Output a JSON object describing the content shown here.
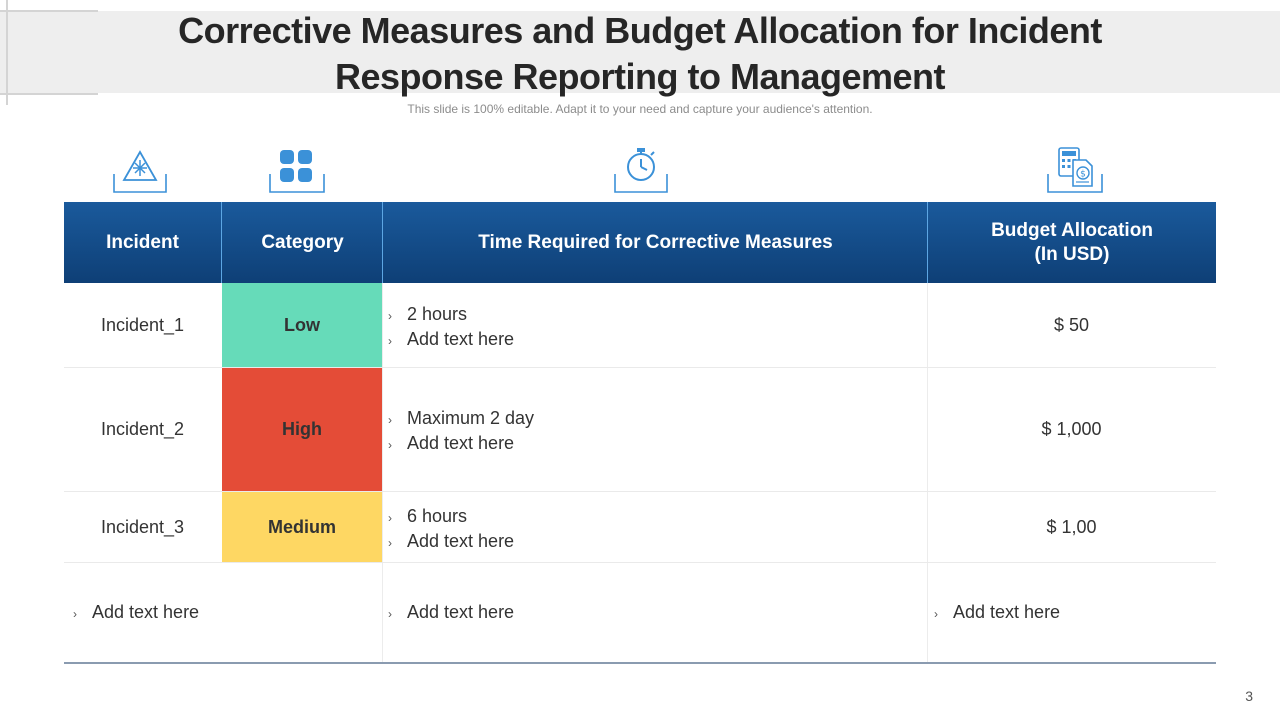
{
  "slide": {
    "title_line1": "Corrective Measures and Budget Allocation for Incident",
    "title_line2": "Response Reporting to Management",
    "subtitle": "This slide is 100% editable. Adapt it to your need and capture your audience's attention.",
    "page_number": "3"
  },
  "icons": [
    "warning-triangle-icon",
    "category-grid-icon",
    "stopwatch-icon",
    "calculator-budget-icon"
  ],
  "colors": {
    "header": "#0e3f76",
    "low": "#66dbb9",
    "high": "#e44c37",
    "medium": "#fed763",
    "icon": "#3b91d8"
  },
  "table": {
    "headers": {
      "incident": "Incident",
      "category": "Category",
      "time": "Time Required for Corrective Measures",
      "budget_line1": "Budget Allocation",
      "budget_line2": "(In USD)"
    },
    "rows": [
      {
        "incident": "Incident_1",
        "category": "Low",
        "time_1": "2 hours",
        "time_2": "Add text here",
        "budget": "$ 50"
      },
      {
        "incident": "Incident_2",
        "category": "High",
        "time_1": "Maximum 2 day",
        "time_2": "Add text here",
        "budget": "$ 1,000"
      },
      {
        "incident": "Incident_3",
        "category": "Medium",
        "time_1": "6 hours",
        "time_2": "Add text here",
        "budget": "$ 1,00"
      }
    ],
    "footer": {
      "col1": "Add text here",
      "col2": "Add text here",
      "col3": "Add text here"
    }
  }
}
